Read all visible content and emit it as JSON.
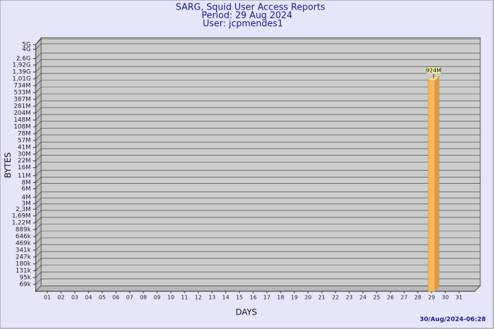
{
  "chart_data": {
    "type": "bar",
    "title": "SARG, Squid User Access Reports",
    "subtitle": [
      "Period: 29 Aug 2024",
      "User: jcpmendes1"
    ],
    "xlabel": "DAYS",
    "ylabel": "BYTES",
    "annotations": [
      "30/Aug/2024-06:28"
    ],
    "categories": [
      "01",
      "02",
      "03",
      "04",
      "05",
      "06",
      "07",
      "08",
      "09",
      "10",
      "11",
      "12",
      "13",
      "14",
      "15",
      "16",
      "17",
      "18",
      "19",
      "20",
      "21",
      "22",
      "23",
      "24",
      "25",
      "26",
      "27",
      "28",
      "29",
      "30",
      "31"
    ],
    "values": [
      null,
      null,
      null,
      null,
      null,
      null,
      null,
      null,
      null,
      null,
      null,
      null,
      null,
      null,
      null,
      null,
      null,
      null,
      null,
      null,
      null,
      null,
      null,
      null,
      null,
      null,
      null,
      null,
      924000000,
      null,
      null
    ],
    "value_labels": [
      null,
      null,
      null,
      null,
      null,
      null,
      null,
      null,
      null,
      null,
      null,
      null,
      null,
      null,
      null,
      null,
      null,
      null,
      null,
      null,
      null,
      null,
      null,
      null,
      null,
      null,
      null,
      null,
      "924M",
      null,
      null
    ],
    "color": "#f5b85c",
    "log_scale": true,
    "grid": true,
    "ylim": [
      50000,
      5000000000
    ],
    "yticks": [
      {
        "value": 69000,
        "label": "69k"
      },
      {
        "value": 95000,
        "label": "95k"
      },
      {
        "value": 131000,
        "label": "131k"
      },
      {
        "value": 180000,
        "label": "180k"
      },
      {
        "value": 247000,
        "label": "247k"
      },
      {
        "value": 341000,
        "label": "341k"
      },
      {
        "value": 469000,
        "label": "469k"
      },
      {
        "value": 646000,
        "label": "646k"
      },
      {
        "value": 889000,
        "label": "889k"
      },
      {
        "value": 1220000,
        "label": "1,22M"
      },
      {
        "value": 1690000,
        "label": "1,69M"
      },
      {
        "value": 2300000,
        "label": "2,3M"
      },
      {
        "value": 3000000,
        "label": "3M"
      },
      {
        "value": 4000000,
        "label": "4M"
      },
      {
        "value": 6000000,
        "label": "6M"
      },
      {
        "value": 8000000,
        "label": "8M"
      },
      {
        "value": 11000000,
        "label": "11M"
      },
      {
        "value": 16000000,
        "label": "16M"
      },
      {
        "value": 22000000,
        "label": "22M"
      },
      {
        "value": 30000000,
        "label": "30M"
      },
      {
        "value": 41000000,
        "label": "41M"
      },
      {
        "value": 57000000,
        "label": "57M"
      },
      {
        "value": 78000000,
        "label": "78M"
      },
      {
        "value": 108000000,
        "label": "108M"
      },
      {
        "value": 148000000,
        "label": "148M"
      },
      {
        "value": 204000000,
        "label": "204M"
      },
      {
        "value": 281000000,
        "label": "281M"
      },
      {
        "value": 387000000,
        "label": "387M"
      },
      {
        "value": 533000000,
        "label": "533M"
      },
      {
        "value": 734000000,
        "label": "734M"
      },
      {
        "value": 1010000000,
        "label": "1,01G"
      },
      {
        "value": 1390000000,
        "label": "1,39G"
      },
      {
        "value": 1920000000,
        "label": "1,92G"
      },
      {
        "value": 2600000000,
        "label": "2,6G"
      },
      {
        "value": 4000000000,
        "label": "4G"
      },
      {
        "value": 5000000000,
        "label": "5G"
      }
    ]
  }
}
